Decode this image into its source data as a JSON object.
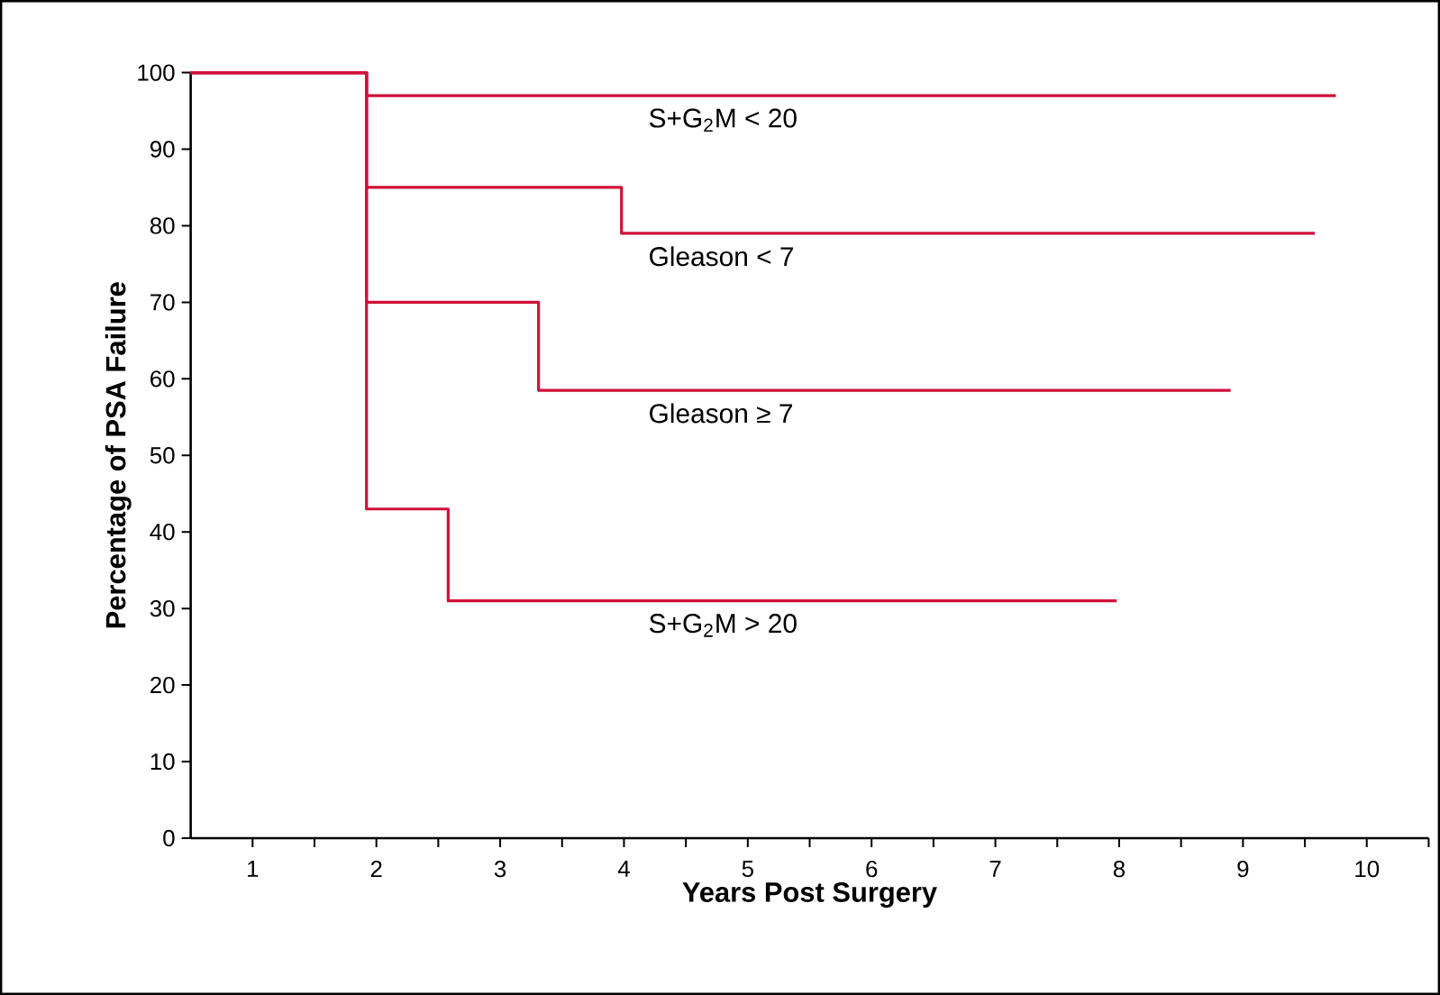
{
  "chart_data": {
    "type": "step",
    "xlabel": "Years Post Surgery",
    "ylabel": "Percentage of PSA Failure",
    "xlim": [
      0.5,
      10.5
    ],
    "ylim": [
      0,
      100
    ],
    "xticks": [
      1,
      2,
      3,
      4,
      5,
      6,
      7,
      8,
      9,
      10,
      {
        "value": 1.5,
        "label": null
      },
      {
        "value": 2.5,
        "label": null
      },
      {
        "value": 3.5,
        "label": null
      },
      {
        "value": 4.5,
        "label": null
      },
      {
        "value": 5.5,
        "label": null
      },
      {
        "value": 6.5,
        "label": null
      },
      {
        "value": 7.5,
        "label": null
      },
      {
        "value": 8.5,
        "label": null
      },
      {
        "value": 9.5,
        "label": null
      },
      {
        "value": 10.5,
        "label": null
      }
    ],
    "yticks": [
      0,
      10,
      20,
      30,
      40,
      50,
      60,
      70,
      80,
      90,
      100
    ],
    "grid": false,
    "legend": false,
    "marker": "none",
    "line_style": "solid",
    "series": [
      {
        "name": "S+G$_{2}$M < 20",
        "color": "#d0103a",
        "x": [
          0.5,
          1.92,
          9.75
        ],
        "values": [
          100,
          97,
          97
        ]
      },
      {
        "name": "Gleason < 7",
        "color": "#d0103a",
        "x": [
          0.5,
          1.92,
          3.98,
          9.58
        ],
        "values": [
          100,
          85,
          79,
          79
        ]
      },
      {
        "name": "Gleason ≥ 7",
        "color": "#d0103a",
        "x": [
          0.5,
          1.92,
          3.31,
          8.9
        ],
        "values": [
          100,
          70,
          58.5,
          58.5
        ]
      },
      {
        "name": "S+G$_{2}$M > 20",
        "color": "#d0103a",
        "x": [
          0.5,
          1.92,
          2.58,
          7.98
        ],
        "values": [
          100,
          43,
          31,
          31
        ]
      }
    ]
  }
}
